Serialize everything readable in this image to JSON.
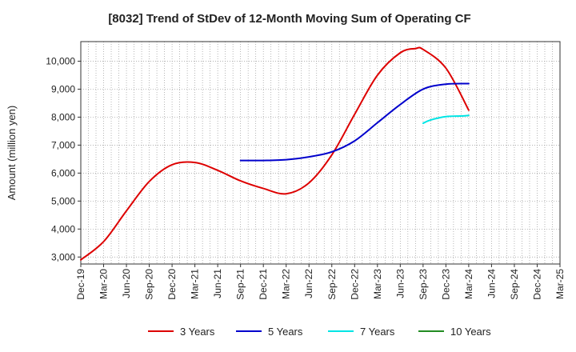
{
  "chart_data": {
    "type": "line",
    "title": "[8032]  Trend of StDev of 12-Month Moving Sum of Operating CF",
    "xlabel": "",
    "ylabel": "Amount (million yen)",
    "x_ticks": [
      "Dec-19",
      "Mar-20",
      "Jun-20",
      "Sep-20",
      "Dec-20",
      "Mar-21",
      "Jun-21",
      "Sep-21",
      "Dec-21",
      "Mar-22",
      "Jun-22",
      "Sep-22",
      "Dec-22",
      "Mar-23",
      "Jun-23",
      "Sep-23",
      "Dec-23",
      "Mar-24",
      "Jun-24",
      "Sep-24",
      "Dec-24",
      "Mar-25"
    ],
    "y_ticks": [
      3000,
      4000,
      5000,
      6000,
      7000,
      8000,
      9000,
      10000
    ],
    "y_tick_labels": [
      "3,000",
      "4,000",
      "5,000",
      "6,000",
      "7,000",
      "8,000",
      "9,000",
      "10,000"
    ],
    "ylim": [
      2750,
      10700
    ],
    "grid": true,
    "legend_position": "bottom",
    "series": [
      {
        "name": "3 Years",
        "color": "#dd0000",
        "points": [
          [
            "Dec-19",
            2900
          ],
          [
            "Mar-20",
            3550
          ],
          [
            "Jun-20",
            4650
          ],
          [
            "Sep-20",
            5700
          ],
          [
            "Dec-20",
            6300
          ],
          [
            "Mar-21",
            6380
          ],
          [
            "Jun-21",
            6100
          ],
          [
            "Sep-21",
            5720
          ],
          [
            "Dec-21",
            5450
          ],
          [
            "Mar-22",
            5260
          ],
          [
            "Jun-22",
            5650
          ],
          [
            "Sep-22",
            6650
          ],
          [
            "Dec-22",
            8100
          ],
          [
            "Mar-23",
            9500
          ],
          [
            "Jun-23",
            10300
          ],
          [
            "Aug-23",
            10450
          ],
          [
            "Sep-23",
            10420
          ],
          [
            "Dec-23",
            9750
          ],
          [
            "Mar-24",
            8250
          ]
        ]
      },
      {
        "name": "5 Years",
        "color": "#0000cc",
        "points": [
          [
            "Sep-21",
            6450
          ],
          [
            "Dec-21",
            6450
          ],
          [
            "Mar-22",
            6480
          ],
          [
            "Jun-22",
            6580
          ],
          [
            "Sep-22",
            6760
          ],
          [
            "Dec-22",
            7150
          ],
          [
            "Mar-23",
            7800
          ],
          [
            "Jun-23",
            8450
          ],
          [
            "Sep-23",
            9000
          ],
          [
            "Dec-23",
            9180
          ],
          [
            "Mar-24",
            9200
          ]
        ]
      },
      {
        "name": "7 Years",
        "color": "#00e5e5",
        "points": [
          [
            "Sep-23",
            7780
          ],
          [
            "Oct-23",
            7900
          ],
          [
            "Dec-23",
            8020
          ],
          [
            "Feb-24",
            8040
          ],
          [
            "Mar-24",
            8060
          ]
        ]
      },
      {
        "name": "10 Years",
        "color": "#228b22",
        "points": []
      }
    ]
  }
}
